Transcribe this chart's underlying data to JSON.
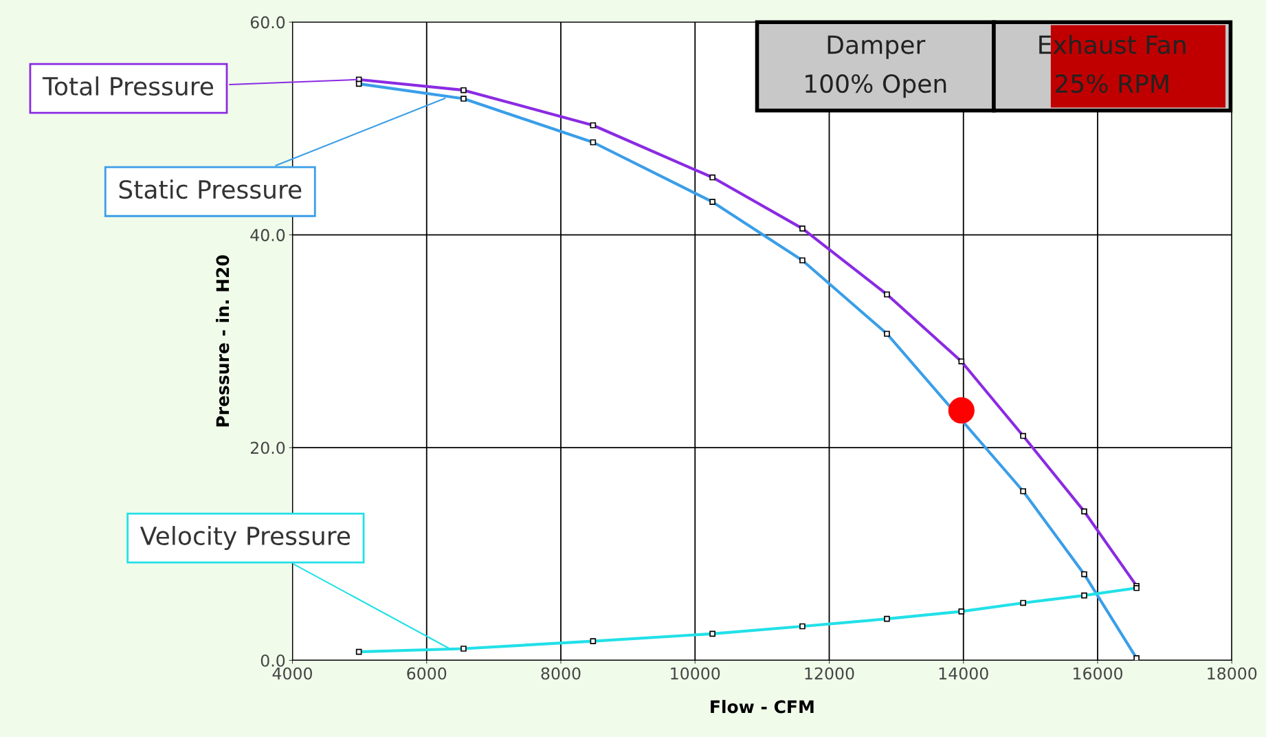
{
  "chart_data": {
    "type": "line",
    "xlabel": "Flow - CFM",
    "ylabel": "Pressure - in. H20",
    "xlim": [
      4000,
      18000
    ],
    "ylim": [
      0,
      60
    ],
    "xticks": [
      4000,
      6000,
      8000,
      10000,
      12000,
      14000,
      16000,
      18000
    ],
    "yticks": [
      {
        "value": 0,
        "label": "0.0"
      },
      {
        "value": 20,
        "label": "20.0"
      },
      {
        "value": 40,
        "label": "40.0"
      },
      {
        "value": 60,
        "label": "60.0"
      }
    ],
    "grid": true,
    "marker": "square",
    "line_style": "solid",
    "series": [
      {
        "color": "#8a2be2",
        "x": [
          4990,
          6550,
          8480,
          10260,
          11600,
          12860,
          13970,
          14890,
          15800,
          16580
        ],
        "values": [
          54.6,
          53.6,
          50.3,
          45.4,
          40.6,
          34.4,
          28.1,
          21.1,
          14.0,
          7.0
        ]
      },
      {
        "color": "#3a9ee8",
        "x": [
          4990,
          6550,
          8480,
          10260,
          11600,
          12860,
          14890,
          15800,
          16580
        ],
        "values": [
          54.2,
          52.8,
          48.7,
          43.1,
          37.6,
          30.7,
          15.9,
          8.1,
          0.2
        ]
      },
      {
        "color": "#22e0e8",
        "x": [
          4990,
          6550,
          8480,
          10260,
          11600,
          12860,
          13970,
          14890,
          15800,
          16580
        ],
        "values": [
          0.8,
          1.1,
          1.8,
          2.5,
          3.2,
          3.9,
          4.6,
          5.4,
          6.1,
          6.8
        ]
      },
      {
        "type": "scatter",
        "marker": "circle",
        "color": "#ff0000",
        "x": [
          13970
        ],
        "values": [
          23.5
        ]
      }
    ],
    "annotations": [
      {
        "text": "Total Pressure",
        "x": 4990,
        "y": 54.6
      },
      {
        "text": "Static Pressure",
        "x": 6300,
        "y": 52.9
      },
      {
        "text": "Velocity Pressure",
        "x": 6400,
        "y": 0.9
      },
      "Damper\n100% Open",
      "Exhaust Fan\n25% RPM"
    ]
  }
}
